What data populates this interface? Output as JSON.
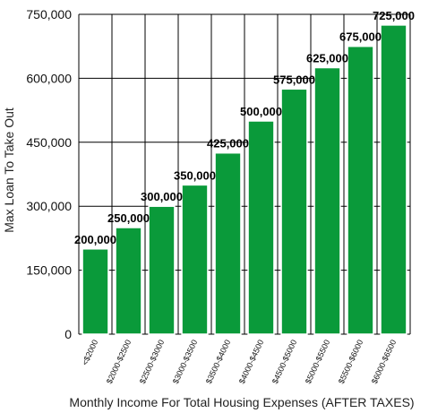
{
  "chart_data": {
    "type": "bar",
    "title": "",
    "xlabel": "Monthly Income For Total Housing Expenses (AFTER TAXES)",
    "ylabel": "Max Loan To Take Out",
    "categories": [
      "<$2000",
      "$2000-$2500",
      "$2500-$3000",
      "$3000-$3500",
      "$3500-$4000",
      "$4000-$4500",
      "$4500-$5000",
      "$5000-$5500",
      "$5500-$6000",
      "$6000-$6500"
    ],
    "values": [
      200000,
      250000,
      300000,
      350000,
      425000,
      500000,
      575000,
      625000,
      675000,
      725000
    ],
    "data_labels": [
      "200,000",
      "250,000",
      "300,000",
      "350,000",
      "425,000",
      "500,000",
      "575,000",
      "625,000",
      "675,000",
      "725,000"
    ],
    "ylim": [
      0,
      750000
    ],
    "yticks": [
      0,
      150000,
      300000,
      450000,
      600000,
      750000
    ],
    "ytick_labels": [
      "0",
      "150,000",
      "300,000",
      "450,000",
      "600,000",
      "750,000"
    ],
    "grid": "on",
    "legend": "none",
    "bar_color": "#0a9a3a",
    "bar_edge_color": "#ffffff"
  }
}
